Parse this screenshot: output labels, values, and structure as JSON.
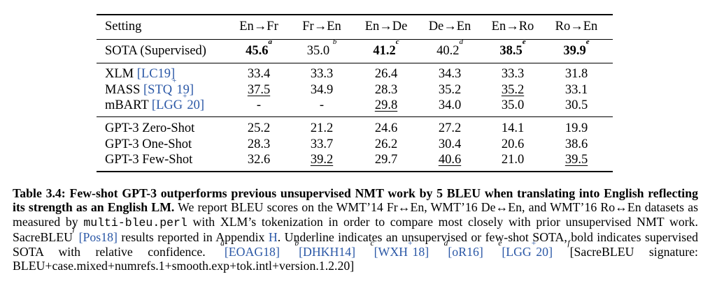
{
  "table": {
    "header": [
      "Setting",
      "En→Fr",
      "Fr→En",
      "En→De",
      "De→En",
      "En→Ro",
      "Ro→En"
    ],
    "sota": {
      "label": "SOTA (Supervised)",
      "cells": [
        {
          "value": "45.6",
          "sup": "a",
          "bold": true
        },
        {
          "value": "35.0 ",
          "sup": "b",
          "bold": false
        },
        {
          "value": "41.2",
          "sup": "c",
          "bold": true
        },
        {
          "value": "40.2",
          "sup": "d",
          "bold": false
        },
        {
          "value": "38.5",
          "sup": "e",
          "bold": true
        },
        {
          "value": "39.9",
          "sup": "e",
          "bold": true
        }
      ]
    },
    "unsup_rows": [
      {
        "name": "XLM ",
        "cite": "[LC19]",
        "cite_sup": "",
        "cite_end": "",
        "cells": [
          {
            "value": "33.4"
          },
          {
            "value": "33.3"
          },
          {
            "value": "26.4"
          },
          {
            "value": "34.3"
          },
          {
            "value": "33.3"
          },
          {
            "value": "31.8"
          }
        ]
      },
      {
        "name": "MASS ",
        "cite": "[STQ",
        "cite_sup": "+",
        "cite_end": "19]",
        "cells": [
          {
            "value": "37.5",
            "underline": true
          },
          {
            "value": "34.9"
          },
          {
            "value": "28.3"
          },
          {
            "value": "35.2"
          },
          {
            "value": "35.2",
            "underline": true
          },
          {
            "value": "33.1"
          }
        ]
      },
      {
        "name": "mBART ",
        "cite": "[LGG",
        "cite_sup": "+",
        "cite_end": "20]",
        "cells": [
          {
            "value": "-"
          },
          {
            "value": "-"
          },
          {
            "value": "29.8",
            "underline": true
          },
          {
            "value": "34.0"
          },
          {
            "value": "35.0"
          },
          {
            "value": "30.5"
          }
        ]
      }
    ],
    "gpt_rows": [
      {
        "name": "GPT-3 Zero-Shot",
        "cells": [
          {
            "value": "25.2"
          },
          {
            "value": "21.2"
          },
          {
            "value": "24.6"
          },
          {
            "value": "27.2"
          },
          {
            "value": "14.1"
          },
          {
            "value": "19.9"
          }
        ]
      },
      {
        "name": "GPT-3 One-Shot",
        "cells": [
          {
            "value": "28.3"
          },
          {
            "value": "33.7"
          },
          {
            "value": "26.2"
          },
          {
            "value": "30.4"
          },
          {
            "value": "20.6"
          },
          {
            "value": "38.6"
          }
        ]
      },
      {
        "name": "GPT-3 Few-Shot",
        "cells": [
          {
            "value": "32.6"
          },
          {
            "value": "39.2",
            "underline": true
          },
          {
            "value": "29.7"
          },
          {
            "value": "40.6",
            "underline": true
          },
          {
            "value": "21.0"
          },
          {
            "value": "39.5",
            "underline": true
          }
        ]
      }
    ]
  },
  "caption": {
    "label": "Table 3.4:",
    "bold_text": "Few-shot GPT-3 outperforms previous unsupervised NMT work by 5 BLEU when translating into English reflecting its strength as an English LM.",
    "text1": "We report BLEU scores on the WMT’14 Fr↔En, WMT’16 De↔En, and WMT’16 Ro↔En datasets as measured by",
    "code": "multi-bleu.perl",
    "text2": "with XLM’s tokenization in order to compare most closely with prior unsupervised NMT work. SacreBLEU",
    "sup_f": "f",
    "cite_pos": "[Pos18]",
    "text3": "results reported in Appendix",
    "appendix": "H",
    "text4": ". Underline indicates an unsupervised or few-shot SOTA, bold indicates supervised SOTA with relative confidence.",
    "refs": [
      {
        "sup": "a",
        "cite": "[EOAG18]"
      },
      {
        "sup": "b",
        "cite": "[DHKH14]"
      },
      {
        "sup": "c",
        "cite": "[WXH",
        "cite_sup": "+",
        "cite_end": "18]"
      },
      {
        "sup": "d",
        "cite": "[oR16]"
      },
      {
        "sup": "e",
        "cite": "[LGG",
        "cite_sup": "+",
        "cite_end": "20]"
      }
    ],
    "final_sup": "f",
    "final_text": "[SacreBLEU signature: BLEU+case.mixed+numrefs.1+smooth.exp+tok.intl+version.1.2.20]"
  }
}
